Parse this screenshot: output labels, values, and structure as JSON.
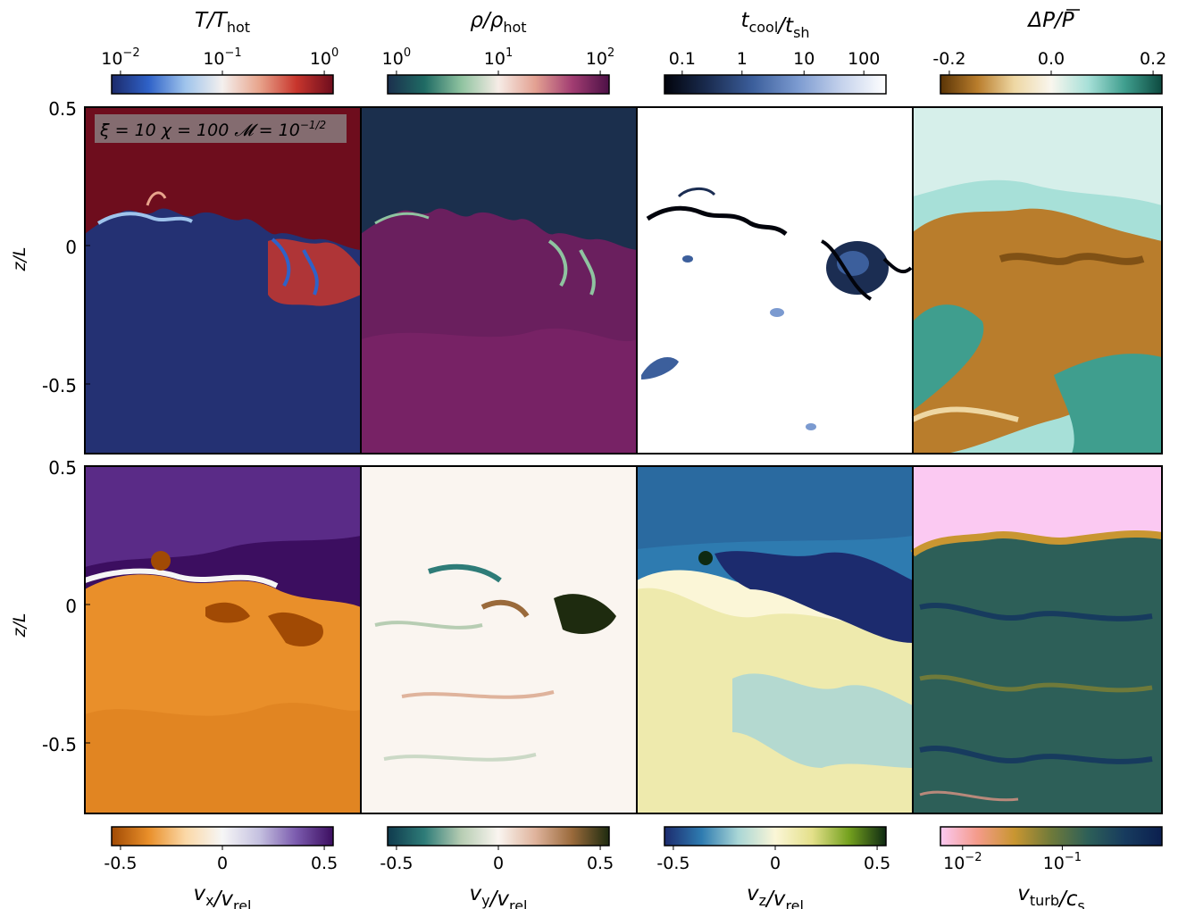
{
  "figure": {
    "annotation": "ξ = 10 χ = 100 𝓜 = 10",
    "annotation_exp": "−1/2",
    "y_axis_label": "z/L",
    "y_ticks": [
      "0.5",
      "0",
      "-0.5"
    ]
  },
  "panels": [
    {
      "id": "temperature",
      "colorbar_label": "T/T",
      "colorbar_sub": "hot",
      "ticks": [
        [
          "10",
          "−2"
        ],
        [
          "10",
          "−1"
        ],
        [
          "10",
          "0"
        ]
      ],
      "colormap": [
        "#1c2a6b",
        "#2f62c8",
        "#9fc4ec",
        "#f4f0ee",
        "#e8a48c",
        "#c8362d",
        "#6e0d1d"
      ]
    },
    {
      "id": "density",
      "colorbar_label": "ρ/ρ",
      "colorbar_sub": "hot",
      "ticks": [
        [
          "10",
          "0"
        ],
        [
          "10",
          "1"
        ],
        [
          "10",
          "2"
        ]
      ],
      "colormap": [
        "#1b2f4d",
        "#1f6b64",
        "#8fc3a0",
        "#f6ece6",
        "#e3a192",
        "#a23d72",
        "#4c1046"
      ]
    },
    {
      "id": "cooling_time",
      "colorbar_label": "t",
      "colorbar_sub": "cool",
      "colorbar_label2": "/t",
      "colorbar_sub2": "sh",
      "ticks": [
        [
          "0.1",
          ""
        ],
        [
          "1",
          ""
        ],
        [
          "10",
          ""
        ],
        [
          "100",
          ""
        ]
      ],
      "colormap": [
        "#02040c",
        "#1b2d52",
        "#3c5f9c",
        "#7b9ad0",
        "#c5d2ec",
        "#ffffff"
      ]
    },
    {
      "id": "pressure",
      "colorbar_label": "ΔP/P",
      "ticks": [
        [
          "-0.2",
          ""
        ],
        [
          "0.0",
          ""
        ],
        [
          "0.2",
          ""
        ]
      ],
      "colormap": [
        "#5a3406",
        "#b97d2c",
        "#eed7a3",
        "#f9f6ee",
        "#a7e0d8",
        "#3f9e8e",
        "#0d4a40"
      ]
    },
    {
      "id": "vx",
      "colorbar_label": "v",
      "colorbar_sub": "x",
      "colorbar_label2": "/v",
      "colorbar_sub2": "rel",
      "ticks": [
        [
          "-0.5",
          ""
        ],
        [
          "0",
          ""
        ],
        [
          "0.5",
          ""
        ]
      ],
      "colormap": [
        "#a14a04",
        "#e98f2a",
        "#fbd8a6",
        "#f6f6f6",
        "#c5c1e0",
        "#7b5bae",
        "#3c0e60"
      ]
    },
    {
      "id": "vy",
      "colorbar_label": "v",
      "colorbar_sub": "y",
      "colorbar_label2": "/v",
      "colorbar_sub2": "rel",
      "ticks": [
        [
          "-0.5",
          ""
        ],
        [
          "0",
          ""
        ],
        [
          "0.5",
          ""
        ]
      ],
      "colormap": [
        "#0f3a4d",
        "#2e7c78",
        "#b7cdb3",
        "#faf5f0",
        "#dfb39c",
        "#9a6a3b",
        "#1e2b0f"
      ]
    },
    {
      "id": "vz",
      "colorbar_label": "v",
      "colorbar_sub": "z",
      "colorbar_label2": "/v",
      "colorbar_sub2": "rel",
      "ticks": [
        [
          "-0.5",
          ""
        ],
        [
          "0",
          ""
        ],
        [
          "0.5",
          ""
        ]
      ],
      "colormap": [
        "#1c2b6e",
        "#2e7bb0",
        "#a9d6d6",
        "#fbf6d7",
        "#e4e08a",
        "#74a11e",
        "#0e2a12"
      ]
    },
    {
      "id": "vturb",
      "colorbar_label": "v",
      "colorbar_sub": "turb",
      "colorbar_label2": "/c",
      "colorbar_sub2": "s",
      "ticks": [
        [
          "10",
          "−2"
        ],
        [
          "10",
          "−1"
        ]
      ],
      "colormap": [
        "#fbc9f2",
        "#f49b8a",
        "#c99631",
        "#6f7a3a",
        "#2d5f58",
        "#173b5e",
        "#0b1f4f"
      ]
    }
  ]
}
